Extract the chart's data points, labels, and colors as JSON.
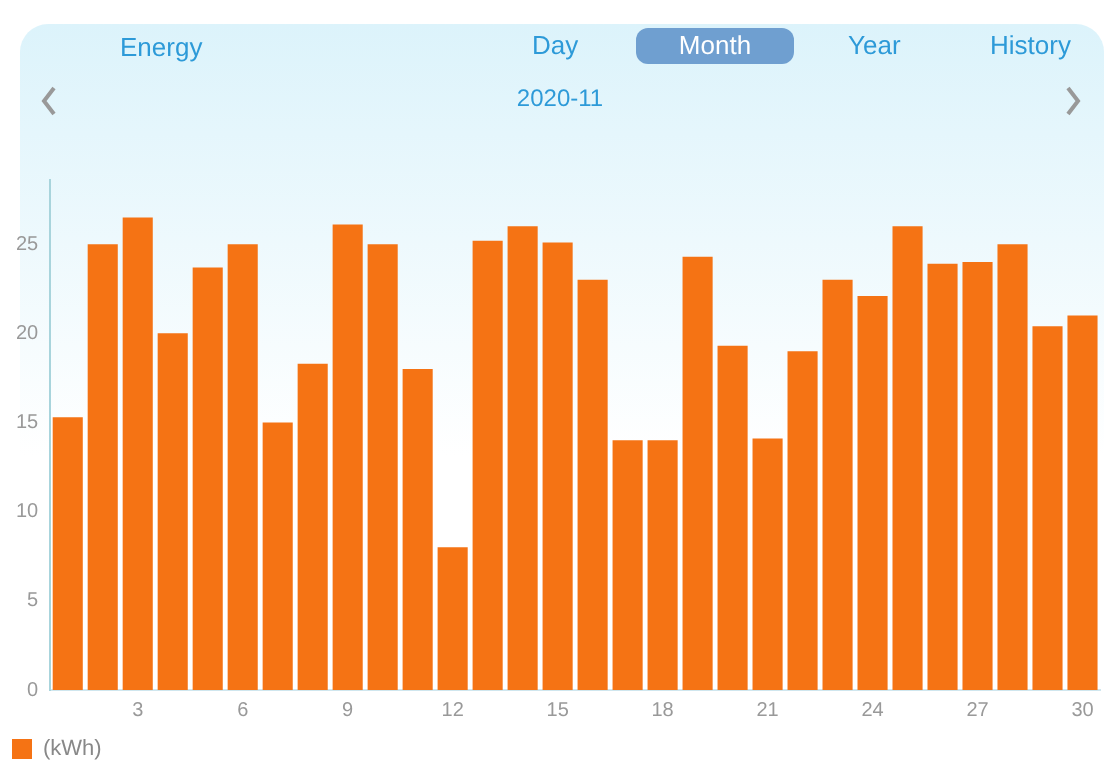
{
  "chart_data": {
    "type": "bar",
    "title": "Energy",
    "subtitle": "2020-11",
    "annotations": [
      "Day",
      "Month",
      "Year",
      "History"
    ],
    "categories": [
      null,
      null,
      "3",
      null,
      null,
      "6",
      null,
      null,
      "9",
      null,
      null,
      "12",
      null,
      null,
      "15",
      null,
      null,
      "18",
      null,
      null,
      "21",
      null,
      null,
      "24",
      null,
      null,
      "27",
      null,
      null,
      "30"
    ],
    "series": [
      {
        "name": "(kWh)",
        "color": "#f57314",
        "values": [
          15.3,
          25,
          26.5,
          20,
          23.7,
          25,
          15,
          18.3,
          26.1,
          25,
          18,
          8,
          25.2,
          26,
          25.1,
          23,
          14,
          14,
          24.3,
          19.3,
          14.1,
          19,
          23,
          22.1,
          26,
          23.9,
          24,
          25,
          20.4,
          21
        ]
      }
    ],
    "ylim": [
      0,
      28.6
    ],
    "yticks": [
      0,
      5,
      10,
      15,
      20,
      25
    ],
    "grid": false,
    "legend": "bottom left"
  }
}
